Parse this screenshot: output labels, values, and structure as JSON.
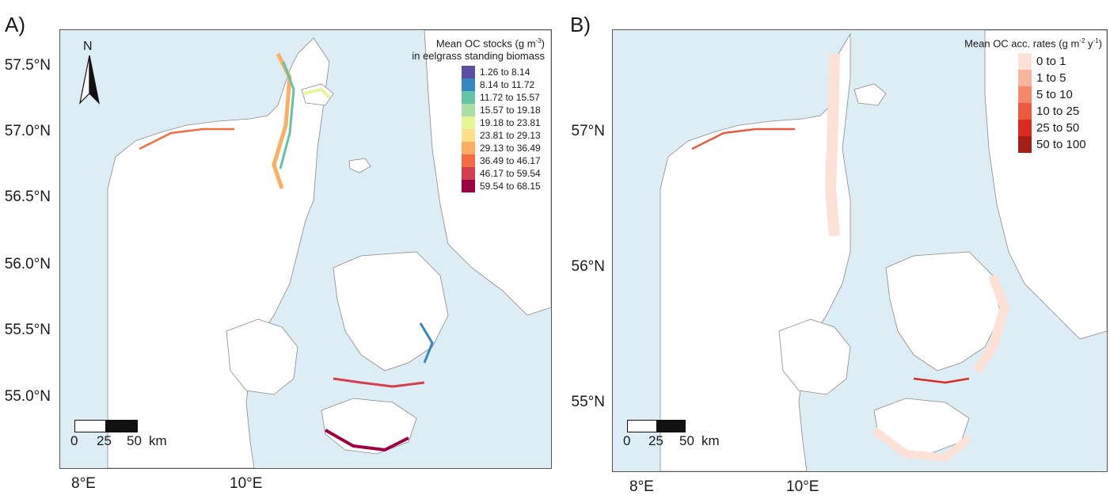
{
  "panels": [
    {
      "label": "A)",
      "legend_title_line1": "Mean OC stocks (g m",
      "legend_title_sup": "-3",
      "legend_title_line1_end": ")",
      "legend_title_line2": "in eelgrass standing biomass",
      "legend_items": [
        {
          "label": "1.26 to 8.14",
          "color": "#5e4fa2"
        },
        {
          "label": "8.14 to 11.72",
          "color": "#3288bd"
        },
        {
          "label": "11.72 to 15.57",
          "color": "#66c2a5"
        },
        {
          "label": "15.57 to 19.18",
          "color": "#abdda4"
        },
        {
          "label": "19.18 to 23.81",
          "color": "#e6f598"
        },
        {
          "label": "23.81 to 29.13",
          "color": "#fee08b"
        },
        {
          "label": "29.13 to 36.49",
          "color": "#fdae61"
        },
        {
          "label": "36.49 to 46.17",
          "color": "#f46d43"
        },
        {
          "label": "46.17 to 59.54",
          "color": "#d53e4f"
        },
        {
          "label": "59.54 to 68.15",
          "color": "#9e0142"
        }
      ],
      "y_ticks": [
        "57.5°N",
        "57.0°N",
        "56.5°N",
        "56.0°N",
        "55.5°N",
        "55.0°N"
      ],
      "x_ticks": [
        "8°E",
        "10°E"
      ],
      "north_label": "N",
      "scale": {
        "t0": "0",
        "t1": "25",
        "t2": "50",
        "unit": "km"
      }
    },
    {
      "label": "B)",
      "legend_title_line1": "Mean OC acc. rates (g m",
      "legend_title_sup": "-2",
      "legend_title_mid": " y",
      "legend_title_sup2": "-1",
      "legend_title_line1_end": ")",
      "legend_items": [
        {
          "label": "0 to 1",
          "color": "#fde0d6"
        },
        {
          "label": "1 to 5",
          "color": "#f9b49d"
        },
        {
          "label": "5 to 10",
          "color": "#f4896b"
        },
        {
          "label": "10 to 25",
          "color": "#ea5a3f"
        },
        {
          "label": "25 to 50",
          "color": "#d92b20"
        },
        {
          "label": "50 to 100",
          "color": "#a51d17"
        }
      ],
      "y_ticks": [
        "57°N",
        "56°N",
        "55°N"
      ],
      "x_ticks": [
        "8°E",
        "10°E"
      ],
      "scale": {
        "t0": "0",
        "t1": "25",
        "t2": "50",
        "unit": "km"
      }
    }
  ],
  "colors": {
    "sea": "#dcedf5",
    "land": "#ffffff",
    "coast": "#8a8a8a"
  }
}
